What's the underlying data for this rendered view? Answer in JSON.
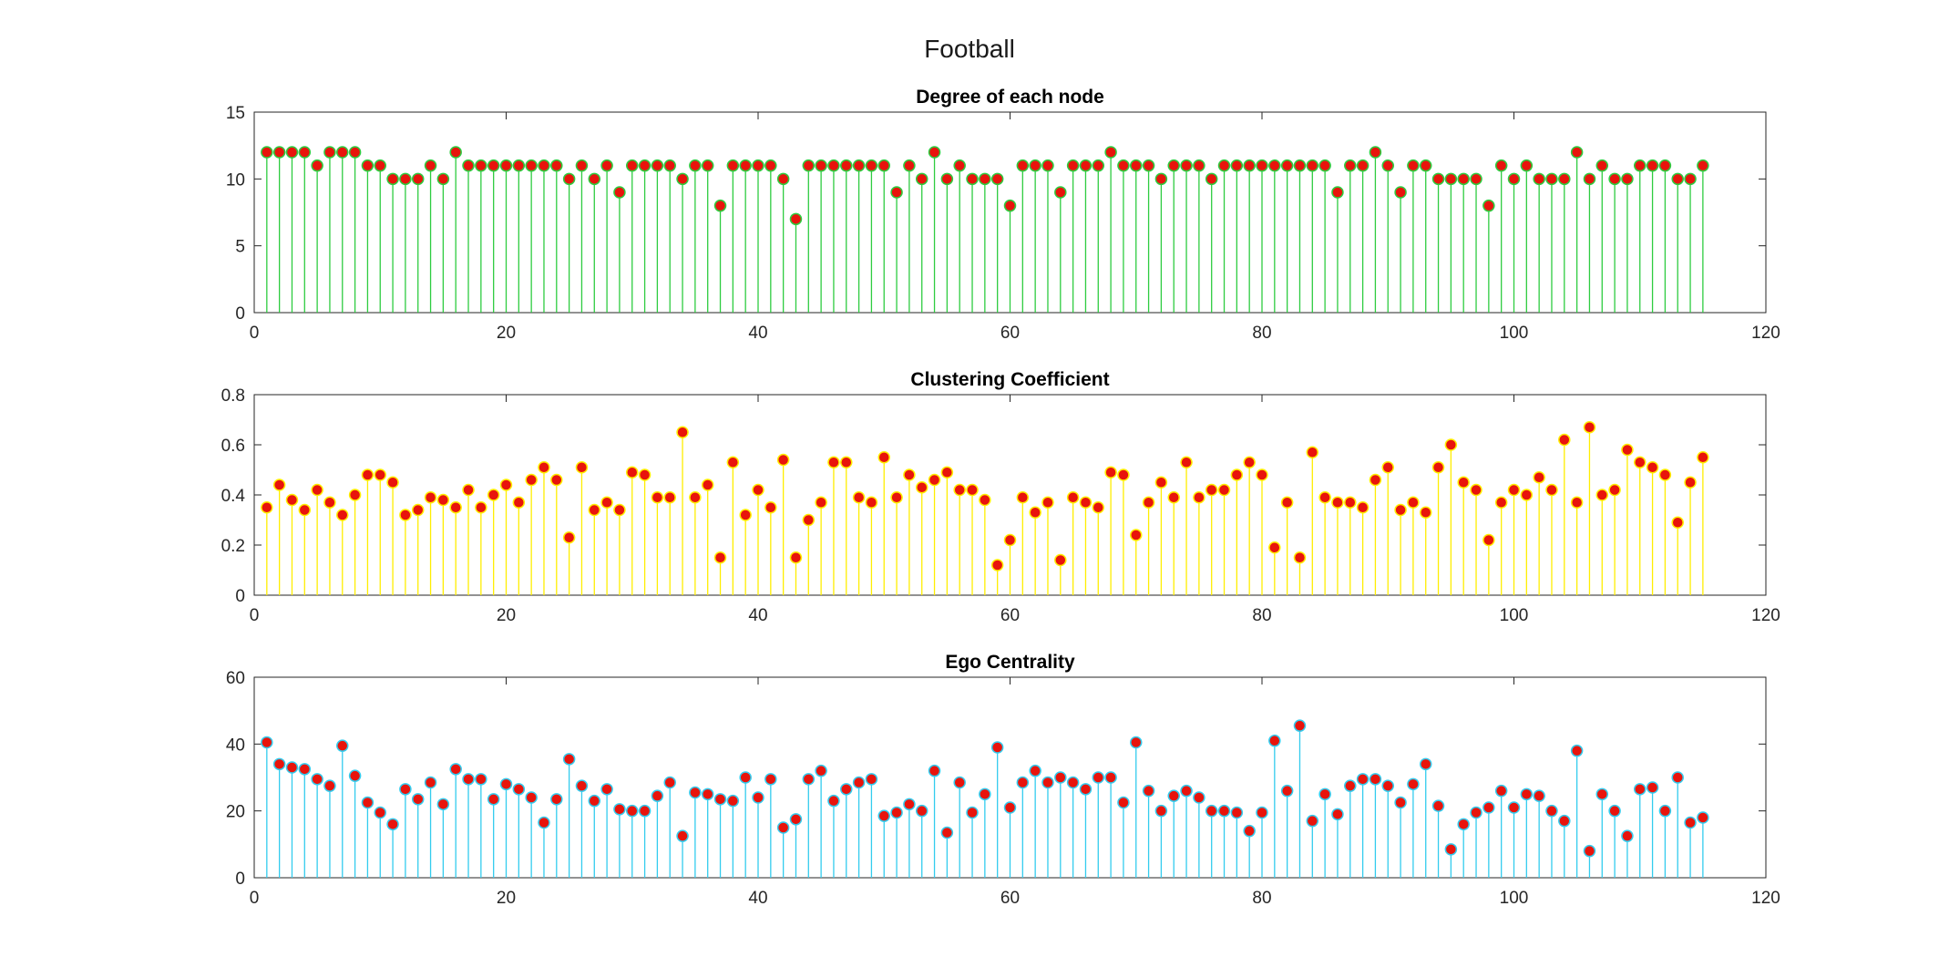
{
  "figure": {
    "title": "Football"
  },
  "style": {
    "marker_fill": "#e8140c",
    "panel_colors": [
      "#2ecc40",
      "#ffee00",
      "#33ccee"
    ]
  },
  "chart_data": [
    {
      "type": "stem",
      "title": "Degree of each node",
      "xlim": [
        0,
        120
      ],
      "ylim": [
        0,
        15
      ],
      "xticks": [
        "0",
        "20",
        "40",
        "60",
        "80",
        "100",
        "120"
      ],
      "yticks": [
        "0",
        "5",
        "10",
        "15"
      ],
      "grid": false,
      "x": [
        1,
        2,
        3,
        4,
        5,
        6,
        7,
        8,
        9,
        10,
        11,
        12,
        13,
        14,
        15,
        16,
        17,
        18,
        19,
        20,
        21,
        22,
        23,
        24,
        25,
        26,
        27,
        28,
        29,
        30,
        31,
        32,
        33,
        34,
        35,
        36,
        37,
        38,
        39,
        40,
        41,
        42,
        43,
        44,
        45,
        46,
        47,
        48,
        49,
        50,
        51,
        52,
        53,
        54,
        55,
        56,
        57,
        58,
        59,
        60,
        61,
        62,
        63,
        64,
        65,
        66,
        67,
        68,
        69,
        70,
        71,
        72,
        73,
        74,
        75,
        76,
        77,
        78,
        79,
        80,
        81,
        82,
        83,
        84,
        85,
        86,
        87,
        88,
        89,
        90,
        91,
        92,
        93,
        94,
        95,
        96,
        97,
        98,
        99,
        100,
        101,
        102,
        103,
        104,
        105,
        106,
        107,
        108,
        109,
        110,
        111,
        112,
        113,
        114,
        115
      ],
      "values": [
        12,
        12,
        12,
        12,
        11,
        12,
        12,
        12,
        11,
        11,
        10,
        10,
        10,
        11,
        10,
        12,
        11,
        11,
        11,
        11,
        11,
        11,
        11,
        11,
        10,
        11,
        10,
        11,
        9,
        11,
        11,
        11,
        11,
        10,
        11,
        11,
        8,
        11,
        11,
        11,
        11,
        10,
        7,
        11,
        11,
        11,
        11,
        11,
        11,
        11,
        9,
        11,
        10,
        12,
        10,
        11,
        10,
        10,
        10,
        8,
        11,
        11,
        11,
        9,
        11,
        11,
        11,
        12,
        11,
        11,
        11,
        10,
        11,
        11,
        11,
        10,
        11,
        11,
        11,
        11,
        11,
        11,
        11,
        11,
        11,
        9,
        11,
        11,
        12,
        11,
        9,
        11,
        11,
        10,
        10,
        10,
        10,
        8,
        11,
        10,
        11,
        10,
        10,
        10,
        12,
        10,
        11,
        10,
        10,
        11,
        11,
        11,
        10,
        10,
        11
      ]
    },
    {
      "type": "stem",
      "title": "Clustering Coefficient",
      "xlim": [
        0,
        120
      ],
      "ylim": [
        0,
        0.8
      ],
      "xticks": [
        "0",
        "20",
        "40",
        "60",
        "80",
        "100",
        "120"
      ],
      "yticks": [
        "0",
        "0.2",
        "0.4",
        "0.6",
        "0.8"
      ],
      "grid": false,
      "x": [
        1,
        2,
        3,
        4,
        5,
        6,
        7,
        8,
        9,
        10,
        11,
        12,
        13,
        14,
        15,
        16,
        17,
        18,
        19,
        20,
        21,
        22,
        23,
        24,
        25,
        26,
        27,
        28,
        29,
        30,
        31,
        32,
        33,
        34,
        35,
        36,
        37,
        38,
        39,
        40,
        41,
        42,
        43,
        44,
        45,
        46,
        47,
        48,
        49,
        50,
        51,
        52,
        53,
        54,
        55,
        56,
        57,
        58,
        59,
        60,
        61,
        62,
        63,
        64,
        65,
        66,
        67,
        68,
        69,
        70,
        71,
        72,
        73,
        74,
        75,
        76,
        77,
        78,
        79,
        80,
        81,
        82,
        83,
        84,
        85,
        86,
        87,
        88,
        89,
        90,
        91,
        92,
        93,
        94,
        95,
        96,
        97,
        98,
        99,
        100,
        101,
        102,
        103,
        104,
        105,
        106,
        107,
        108,
        109,
        110,
        111,
        112,
        113,
        114,
        115
      ],
      "values": [
        0.35,
        0.44,
        0.38,
        0.34,
        0.42,
        0.37,
        0.32,
        0.4,
        0.48,
        0.48,
        0.45,
        0.32,
        0.34,
        0.39,
        0.38,
        0.35,
        0.42,
        0.35,
        0.4,
        0.44,
        0.37,
        0.46,
        0.51,
        0.46,
        0.23,
        0.51,
        0.34,
        0.37,
        0.34,
        0.49,
        0.48,
        0.39,
        0.39,
        0.65,
        0.39,
        0.44,
        0.15,
        0.53,
        0.32,
        0.42,
        0.35,
        0.54,
        0.15,
        0.3,
        0.37,
        0.53,
        0.53,
        0.39,
        0.37,
        0.55,
        0.39,
        0.48,
        0.43,
        0.46,
        0.49,
        0.42,
        0.42,
        0.38,
        0.12,
        0.22,
        0.39,
        0.33,
        0.37,
        0.14,
        0.39,
        0.37,
        0.35,
        0.49,
        0.48,
        0.24,
        0.37,
        0.45,
        0.39,
        0.53,
        0.39,
        0.42,
        0.42,
        0.48,
        0.53,
        0.48,
        0.19,
        0.37,
        0.15,
        0.57,
        0.39,
        0.37,
        0.37,
        0.35,
        0.46,
        0.51,
        0.34,
        0.37,
        0.33,
        0.51,
        0.6,
        0.45,
        0.42,
        0.22,
        0.37,
        0.42,
        0.4,
        0.47,
        0.42,
        0.62,
        0.37,
        0.67,
        0.4,
        0.42,
        0.58,
        0.53,
        0.51,
        0.48,
        0.29,
        0.45,
        0.55
      ]
    },
    {
      "type": "stem",
      "title": "Ego Centrality",
      "xlim": [
        0,
        120
      ],
      "ylim": [
        0,
        60
      ],
      "xticks": [
        "0",
        "20",
        "40",
        "60",
        "80",
        "100",
        "120"
      ],
      "yticks": [
        "0",
        "20",
        "40",
        "60"
      ],
      "grid": false,
      "x": [
        1,
        2,
        3,
        4,
        5,
        6,
        7,
        8,
        9,
        10,
        11,
        12,
        13,
        14,
        15,
        16,
        17,
        18,
        19,
        20,
        21,
        22,
        23,
        24,
        25,
        26,
        27,
        28,
        29,
        30,
        31,
        32,
        33,
        34,
        35,
        36,
        37,
        38,
        39,
        40,
        41,
        42,
        43,
        44,
        45,
        46,
        47,
        48,
        49,
        50,
        51,
        52,
        53,
        54,
        55,
        56,
        57,
        58,
        59,
        60,
        61,
        62,
        63,
        64,
        65,
        66,
        67,
        68,
        69,
        70,
        71,
        72,
        73,
        74,
        75,
        76,
        77,
        78,
        79,
        80,
        81,
        82,
        83,
        84,
        85,
        86,
        87,
        88,
        89,
        90,
        91,
        92,
        93,
        94,
        95,
        96,
        97,
        98,
        99,
        100,
        101,
        102,
        103,
        104,
        105,
        106,
        107,
        108,
        109,
        110,
        111,
        112,
        113,
        114,
        115
      ],
      "values": [
        40.5,
        34,
        33,
        32.5,
        29.5,
        27.5,
        39.5,
        30.5,
        22.5,
        19.5,
        16,
        26.5,
        23.5,
        28.5,
        22,
        32.5,
        29.5,
        29.5,
        23.5,
        28,
        26.5,
        24,
        16.5,
        23.5,
        35.5,
        27.5,
        23,
        26.5,
        20.5,
        20,
        20,
        24.5,
        28.5,
        12.5,
        25.5,
        25,
        23.5,
        23,
        30,
        24,
        29.5,
        15,
        17.5,
        29.5,
        32,
        23,
        26.5,
        28.5,
        29.5,
        18.5,
        19.5,
        22,
        20,
        32,
        13.5,
        28.5,
        19.5,
        25,
        39,
        21,
        28.5,
        32,
        28.5,
        30,
        28.5,
        26.5,
        30,
        30,
        22.5,
        40.5,
        26,
        20,
        24.5,
        26,
        24,
        20,
        20,
        19.5,
        14,
        19.5,
        41,
        26,
        45.5,
        17,
        25,
        19,
        27.5,
        29.5,
        29.5,
        27.5,
        22.5,
        28,
        34,
        21.5,
        8.5,
        16,
        19.5,
        21,
        26,
        21,
        25,
        24.5,
        20,
        17,
        38,
        8,
        25,
        20,
        12.5,
        26.5,
        27,
        20,
        30,
        16.5,
        18
      ]
    }
  ]
}
